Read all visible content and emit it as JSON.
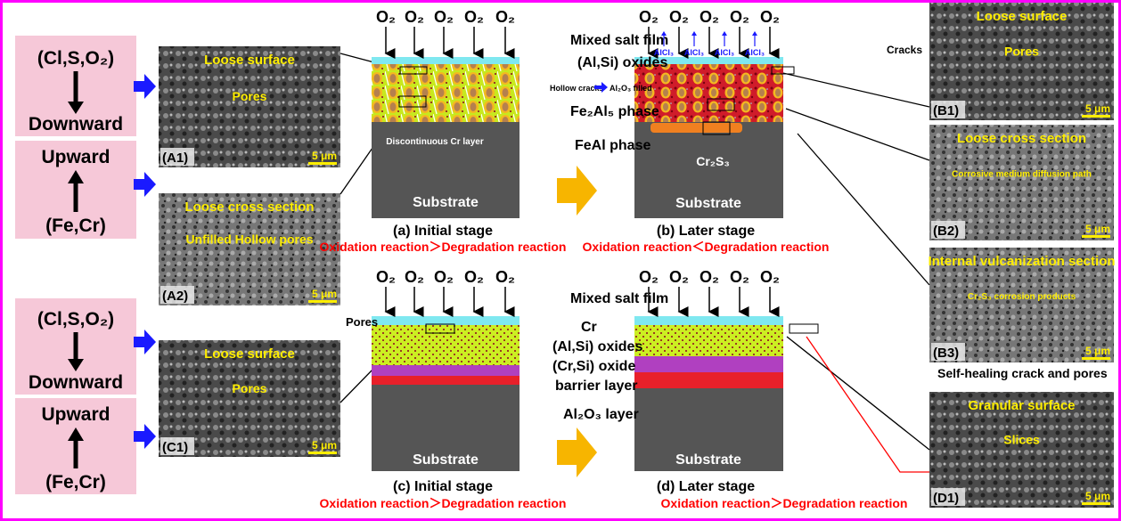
{
  "colors": {
    "border": "#ff00ff",
    "pink_box": "#f6c8d8",
    "blue_arrow": "#1a1aff",
    "yellow_arrow": "#f7b500",
    "salt_film": "#7fe8f0",
    "substrate": "#555555",
    "red_text": "#ff0000",
    "sem_label": "#ffee00",
    "alumina_layer": "#e8202a",
    "cr_si_oxide": "#b040c0",
    "al_si_oxides": "#ccee22"
  },
  "left": {
    "groups": [
      {
        "top_label": "(Cl,S,O₂)",
        "bottom_label": "Downward"
      },
      {
        "top_label": "Upward",
        "bottom_label": "(Fe,Cr)"
      },
      {
        "top_label": "(Cl,S,O₂)",
        "bottom_label": "Downward"
      },
      {
        "top_label": "Upward",
        "bottom_label": "(Fe,Cr)"
      }
    ]
  },
  "sem": {
    "A1": {
      "id": "(A1)",
      "title": "Loose surface",
      "note": "Pores",
      "scale": "5 μm"
    },
    "A2": {
      "id": "(A2)",
      "title": "Loose cross section",
      "note": "Unfilled Hollow pores",
      "scale": "5 μm"
    },
    "C1": {
      "id": "(C1)",
      "title": "Loose surface",
      "note": "Pores",
      "scale": "5 μm"
    },
    "B1": {
      "id": "(B1)",
      "title": "Loose surface",
      "note": "Pores",
      "scale": "5 μm"
    },
    "B2": {
      "id": "(B2)",
      "title": "Loose cross section",
      "note": "Corrosive medium diffusion path",
      "scale": "5 μm"
    },
    "B3": {
      "id": "(B3)",
      "title": "Internal vulcanization section",
      "note": "Cr₂S₃ corrosion products",
      "scale": "5 μm"
    },
    "D1": {
      "id": "(D1)",
      "title": "Granular surface",
      "note": "Slices",
      "scale": "5 μm"
    }
  },
  "o2": "O₂",
  "alcl3": "AlCl₃",
  "substrate": "Substrate",
  "panel_a": {
    "caption": "(a) Initial stage",
    "reaction": "Oxidation reaction＞Degradation reaction",
    "mixed_salt_film": "Mixed salt film",
    "al_si_oxides": "(Al,Si) oxides",
    "hollow_cracks": "Hollow cracks",
    "al2o3_filled": "Al₂O₃ filled",
    "fe2al5": "Fe₂Al₅ phase",
    "feal": "FeAl phase",
    "cr_layer": "Discontinuous Cr layer"
  },
  "panel_b": {
    "caption": "(b) Later stage",
    "reaction": "Oxidation reaction＜Degradation reaction",
    "cracks": "Cracks",
    "cr2s3": "Cr₂S₃"
  },
  "panel_c": {
    "caption": "(c) Initial stage",
    "reaction": "Oxidation reaction＞Degradation reaction",
    "pores": "Pores",
    "mixed_salt_film": "Mixed salt film",
    "cr": "Cr",
    "al_si_oxides": "(Al,Si) oxides",
    "cr_si_oxide_1": "(Cr,Si) oxide",
    "cr_si_oxide_2": "barrier layer",
    "al2o3_layer": "Al₂O₃ layer"
  },
  "panel_d": {
    "caption": "(d) Later stage",
    "reaction": "Oxidation reaction＞Degradation reaction",
    "self_healing": "Self-healing crack and pores"
  }
}
